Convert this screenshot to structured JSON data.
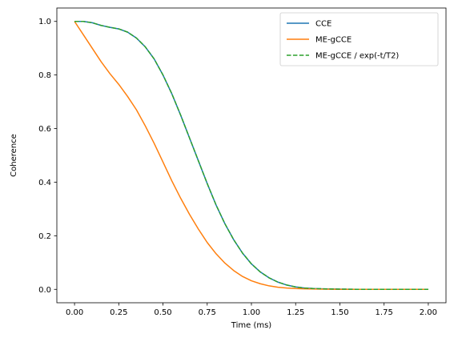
{
  "chart_data": {
    "type": "line",
    "title": "",
    "xlabel": "Time (ms)",
    "ylabel": "Coherence",
    "xlim": [
      -0.1,
      2.1
    ],
    "ylim": [
      -0.05,
      1.05
    ],
    "xticks": [
      0.0,
      0.25,
      0.5,
      0.75,
      1.0,
      1.25,
      1.5,
      1.75,
      2.0
    ],
    "xtick_labels": [
      "0.00",
      "0.25",
      "0.50",
      "0.75",
      "1.00",
      "1.25",
      "1.50",
      "1.75",
      "2.00"
    ],
    "yticks": [
      0.0,
      0.2,
      0.4,
      0.6,
      0.8,
      1.0
    ],
    "ytick_labels": [
      "0.0",
      "0.2",
      "0.4",
      "0.6",
      "0.8",
      "1.0"
    ],
    "grid": false,
    "legend": "top-right",
    "series": [
      {
        "name": "CCE",
        "color": "#1f77b4",
        "style": "solid",
        "x": [
          0.0,
          0.05,
          0.1,
          0.15,
          0.2,
          0.25,
          0.3,
          0.35,
          0.4,
          0.45,
          0.5,
          0.55,
          0.6,
          0.65,
          0.7,
          0.75,
          0.8,
          0.85,
          0.9,
          0.95,
          1.0,
          1.05,
          1.1,
          1.15,
          1.2,
          1.25,
          1.3,
          1.35,
          1.4,
          1.5,
          1.6,
          1.75,
          2.0
        ],
        "y": [
          1.0,
          1.0,
          0.995,
          0.985,
          0.978,
          0.972,
          0.96,
          0.938,
          0.905,
          0.86,
          0.8,
          0.73,
          0.65,
          0.565,
          0.48,
          0.395,
          0.315,
          0.245,
          0.185,
          0.135,
          0.095,
          0.065,
          0.043,
          0.027,
          0.016,
          0.009,
          0.005,
          0.003,
          0.002,
          0.001,
          0.0,
          0.0,
          0.0
        ]
      },
      {
        "name": "ME-gCCE",
        "color": "#ff7f0e",
        "style": "solid",
        "x": [
          0.0,
          0.05,
          0.1,
          0.15,
          0.2,
          0.25,
          0.3,
          0.35,
          0.4,
          0.45,
          0.5,
          0.55,
          0.6,
          0.65,
          0.7,
          0.75,
          0.8,
          0.85,
          0.9,
          0.95,
          1.0,
          1.05,
          1.1,
          1.15,
          1.2,
          1.25,
          1.3,
          1.4,
          1.5,
          1.6,
          1.75,
          2.0
        ],
        "y": [
          1.0,
          0.95,
          0.9,
          0.85,
          0.805,
          0.765,
          0.72,
          0.67,
          0.61,
          0.545,
          0.475,
          0.405,
          0.34,
          0.28,
          0.225,
          0.175,
          0.133,
          0.098,
          0.07,
          0.048,
          0.032,
          0.021,
          0.013,
          0.008,
          0.005,
          0.003,
          0.002,
          0.001,
          0.0,
          0.0,
          0.0,
          0.0
        ]
      },
      {
        "name": "ME-gCCE / exp(-t/T2)",
        "color": "#2ca02c",
        "style": "dashed",
        "x": [
          0.0,
          0.05,
          0.1,
          0.15,
          0.2,
          0.25,
          0.3,
          0.35,
          0.4,
          0.45,
          0.5,
          0.55,
          0.6,
          0.65,
          0.7,
          0.75,
          0.8,
          0.85,
          0.9,
          0.95,
          1.0,
          1.05,
          1.1,
          1.15,
          1.2,
          1.25,
          1.3,
          1.35,
          1.4,
          1.5,
          1.6,
          1.75,
          2.0
        ],
        "y": [
          1.0,
          1.0,
          0.995,
          0.985,
          0.978,
          0.972,
          0.96,
          0.938,
          0.905,
          0.86,
          0.8,
          0.73,
          0.65,
          0.565,
          0.48,
          0.395,
          0.315,
          0.245,
          0.185,
          0.135,
          0.095,
          0.065,
          0.043,
          0.027,
          0.016,
          0.009,
          0.005,
          0.003,
          0.002,
          0.001,
          0.0,
          0.0,
          0.0
        ]
      }
    ]
  }
}
